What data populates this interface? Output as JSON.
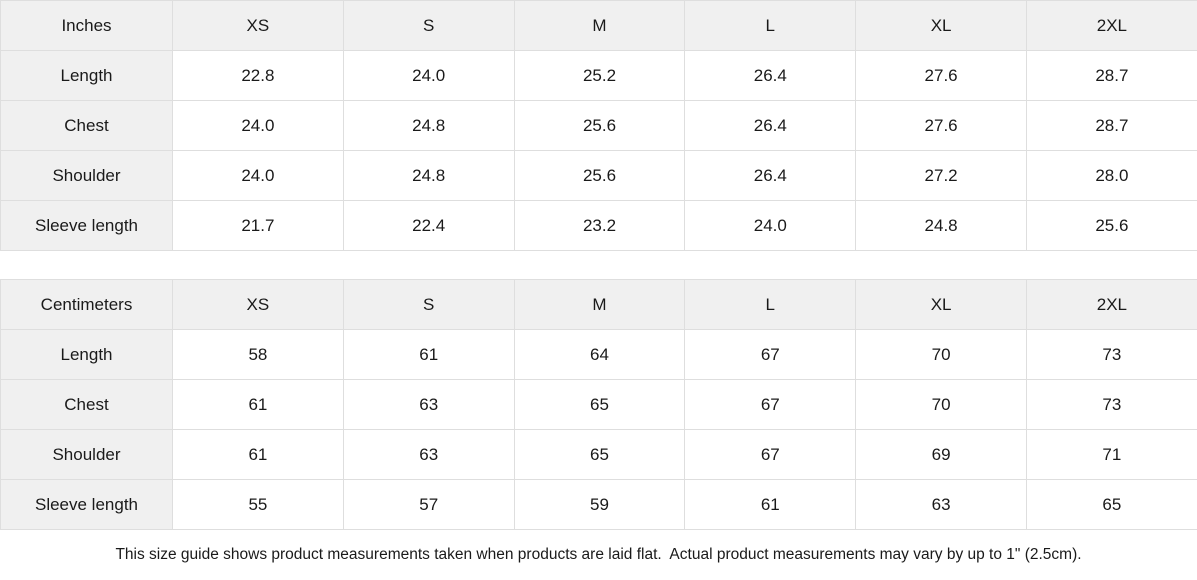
{
  "theme": {
    "header_bg": "#f0f0f0",
    "border_color": "#dedede",
    "cell_bg": "#ffffff",
    "text_color": "#1a1a1a"
  },
  "tables": [
    {
      "unit_label": "Inches",
      "sizes": [
        "XS",
        "S",
        "M",
        "L",
        "XL",
        "2XL"
      ],
      "rows": [
        {
          "label": "Length",
          "values": [
            "22.8",
            "24.0",
            "25.2",
            "26.4",
            "27.6",
            "28.7"
          ]
        },
        {
          "label": "Chest",
          "values": [
            "24.0",
            "24.8",
            "25.6",
            "26.4",
            "27.6",
            "28.7"
          ]
        },
        {
          "label": "Shoulder",
          "values": [
            "24.0",
            "24.8",
            "25.6",
            "26.4",
            "27.2",
            "28.0"
          ]
        },
        {
          "label": "Sleeve length",
          "values": [
            "21.7",
            "22.4",
            "23.2",
            "24.0",
            "24.8",
            "25.6"
          ]
        }
      ]
    },
    {
      "unit_label": "Centimeters",
      "sizes": [
        "XS",
        "S",
        "M",
        "L",
        "XL",
        "2XL"
      ],
      "rows": [
        {
          "label": "Length",
          "values": [
            "58",
            "61",
            "64",
            "67",
            "70",
            "73"
          ]
        },
        {
          "label": "Chest",
          "values": [
            "61",
            "63",
            "65",
            "67",
            "70",
            "73"
          ]
        },
        {
          "label": "Shoulder",
          "values": [
            "61",
            "63",
            "65",
            "67",
            "69",
            "71"
          ]
        },
        {
          "label": "Sleeve length",
          "values": [
            "55",
            "57",
            "59",
            "61",
            "63",
            "65"
          ]
        }
      ]
    }
  ],
  "footer": {
    "note": "This size guide shows product measurements taken when products are laid flat.  Actual product measurements may vary by up to 1\" (2.5cm)."
  }
}
